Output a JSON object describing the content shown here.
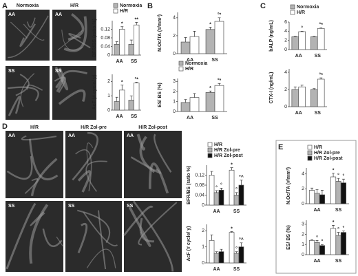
{
  "panel_labels": [
    "A",
    "B",
    "C",
    "D",
    "E"
  ],
  "micrographs": [
    {
      "columns": [
        "Normoxia",
        "H/R"
      ],
      "rows": [
        "AA",
        "SS"
      ]
    },
    {
      "columns": [
        "H/R",
        "H/R Zol-pre",
        "H/R Zol-post"
      ],
      "rows": [
        "AA",
        "SS"
      ]
    }
  ],
  "chart_data": [
    {
      "type": "bar",
      "ylabel": "BFR/BS (ratio %)",
      "categories": [
        "AA",
        "SS"
      ],
      "ylim": [
        0,
        0.16
      ],
      "yticks": [
        0,
        0.04,
        0.08,
        0.12
      ],
      "legend": "top",
      "series": [
        {
          "name": "Normoxia",
          "color": "#b3b3b3",
          "values": [
            0.05,
            0.05
          ],
          "errors": [
            0.012,
            0.02
          ]
        },
        {
          "name": "H/R",
          "color": "#ffffff",
          "values": [
            0.12,
            0.14
          ],
          "errors": [
            0.012,
            0.012
          ],
          "markers": [
            "*",
            "**"
          ]
        }
      ]
    },
    {
      "type": "bar",
      "ylabel": "AcF (# cycle/ y)",
      "categories": [
        "AA",
        "SS"
      ],
      "ylim": [
        0,
        2.5
      ],
      "yticks": [
        0,
        1,
        2
      ],
      "series": [
        {
          "name": "Normoxia",
          "color": "#b3b3b3",
          "values": [
            0.6,
            0.7
          ],
          "errors": [
            0.3,
            0.3
          ]
        },
        {
          "name": "H/R",
          "color": "#ffffff",
          "values": [
            1.4,
            1.9
          ],
          "errors": [
            0.35,
            0.05
          ],
          "markers": [
            "*",
            "°*"
          ]
        }
      ]
    },
    {
      "type": "bar",
      "ylabel": "N.Oc/TA (#/mm²)",
      "categories": [
        "AA",
        "SS"
      ],
      "ylim": [
        0,
        4.6
      ],
      "yticks": [
        0,
        2,
        4
      ],
      "series": [
        {
          "name": "Normoxia",
          "color": "#b3b3b3",
          "values": [
            1.3,
            2.7
          ],
          "errors": [
            0.5,
            0.25
          ],
          "markers": [
            null,
            "*"
          ]
        },
        {
          "name": "H/R",
          "color": "#ffffff",
          "values": [
            1.9,
            3.6
          ],
          "errors": [
            0.6,
            0.4
          ],
          "markers": [
            null,
            "°*"
          ]
        }
      ]
    },
    {
      "type": "bar",
      "ylabel": "ES/ BS (%)",
      "categories": [
        "AA",
        "SS"
      ],
      "ylim": [
        0,
        3.3
      ],
      "yticks": [
        0,
        1,
        2,
        3
      ],
      "legend": "top",
      "series": [
        {
          "name": "Normoxia",
          "color": "#b3b3b3",
          "values": [
            0.9,
            1.9
          ],
          "errors": [
            0.3,
            0.15
          ],
          "markers": [
            null,
            "*"
          ]
        },
        {
          "name": "H/R",
          "color": "#ffffff",
          "values": [
            1.4,
            2.6
          ],
          "errors": [
            0.4,
            0.2
          ],
          "markers": [
            null,
            "°*"
          ]
        }
      ]
    },
    {
      "type": "bar",
      "ylabel": "bALP (ng/mL)",
      "categories": [
        "AA",
        "SS"
      ],
      "ylim": [
        0,
        6
      ],
      "yticks": [
        0,
        2,
        4,
        6
      ],
      "legend": "top",
      "series": [
        {
          "name": "Normoxia",
          "color": "#b3b3b3",
          "values": [
            2.8,
            2.8
          ],
          "errors": [
            0.1,
            0.1
          ]
        },
        {
          "name": "H/R",
          "color": "#ffffff",
          "values": [
            3.9,
            4.6
          ],
          "errors": [
            0.1,
            0.15
          ],
          "markers": [
            "°",
            "°*"
          ]
        }
      ]
    },
    {
      "type": "bar",
      "ylabel": "CTX-I (ng/mL)",
      "categories": [
        "AA",
        "SS"
      ],
      "ylim": [
        0,
        4.4
      ],
      "yticks": [
        0,
        2,
        4
      ],
      "series": [
        {
          "name": "Normoxia",
          "color": "#b3b3b3",
          "values": [
            2.0,
            2.0
          ],
          "errors": [
            0.3,
            0.1
          ]
        },
        {
          "name": "H/R",
          "color": "#ffffff",
          "values": [
            2.3,
            3.2
          ],
          "errors": [
            0.2,
            0.15
          ],
          "markers": [
            null,
            "°*"
          ]
        }
      ]
    },
    {
      "type": "bar",
      "ylabel": "BFR/BS (ratio %)",
      "categories": [
        "AA",
        "SS"
      ],
      "ylim": [
        0,
        0.16
      ],
      "yticks": [
        0,
        0.04,
        0.08,
        0.12
      ],
      "legend": "top",
      "series": [
        {
          "name": "H/R",
          "color": "#ffffff",
          "values": [
            0.12,
            0.14
          ],
          "errors": [
            0.015,
            0.01
          ],
          "markers": [
            null,
            "*"
          ]
        },
        {
          "name": "H/R Zol-pre",
          "color": "#b3b3b3",
          "values": [
            0.05,
            0.04
          ],
          "errors": [
            0.008,
            0.01
          ],
          "markers": [
            "°",
            "°"
          ]
        },
        {
          "name": "H/R Zol-post",
          "color": "#111111",
          "values": [
            0.06,
            0.08
          ],
          "errors": [
            0.008,
            0.02
          ],
          "markers": [
            "°",
            "°^"
          ]
        }
      ]
    },
    {
      "type": "bar",
      "ylabel": "AcF (# cycle/ y)",
      "categories": [
        "AA",
        "SS"
      ],
      "ylim": [
        0,
        2.4
      ],
      "yticks": [
        0,
        1,
        2
      ],
      "series": [
        {
          "name": "H/R",
          "color": "#ffffff",
          "values": [
            1.4,
            1.9
          ],
          "errors": [
            0.35,
            0.05
          ],
          "markers": [
            null,
            "*"
          ]
        },
        {
          "name": "H/R Zol-pre",
          "color": "#b3b3b3",
          "values": [
            0.6,
            0.6
          ],
          "errors": [
            0.1,
            0.1
          ],
          "markers": [
            null,
            "°"
          ]
        },
        {
          "name": "H/R Zol-post",
          "color": "#111111",
          "values": [
            0.7,
            1.0
          ],
          "errors": [
            0.15,
            0.25
          ],
          "markers": [
            null,
            "°^"
          ]
        }
      ]
    },
    {
      "type": "bar",
      "ylabel": "N.Oc/TA (#/mm²)",
      "categories": [
        "AA",
        "SS"
      ],
      "ylim": [
        0,
        4.8
      ],
      "yticks": [
        0,
        2,
        4
      ],
      "legend": "top",
      "series": [
        {
          "name": "H/R",
          "color": "#ffffff",
          "values": [
            1.8,
            3.6
          ],
          "errors": [
            0.3,
            0.5
          ],
          "markers": [
            null,
            "*"
          ]
        },
        {
          "name": "H/R Zol-pre",
          "color": "#b3b3b3",
          "values": [
            1.4,
            3.0
          ],
          "errors": [
            0.5,
            0.4
          ],
          "markers": [
            null,
            "°"
          ]
        },
        {
          "name": "H/R Zol-post",
          "color": "#111111",
          "values": [
            1.2,
            2.8
          ],
          "errors": [
            0.6,
            0.5
          ],
          "markers": [
            null,
            "°"
          ]
        }
      ]
    },
    {
      "type": "bar",
      "ylabel": "ES/ BS (%)",
      "categories": [
        "AA",
        "SS"
      ],
      "ylim": [
        0,
        3.4
      ],
      "yticks": [
        0,
        1,
        2,
        3
      ],
      "series": [
        {
          "name": "H/R",
          "color": "#ffffff",
          "values": [
            1.4,
            2.6
          ],
          "errors": [
            0.1,
            0.3
          ],
          "markers": [
            null,
            "*"
          ]
        },
        {
          "name": "H/R Zol-pre",
          "color": "#b3b3b3",
          "values": [
            1.2,
            1.9
          ],
          "errors": [
            0.2,
            0.3
          ],
          "markers": [
            "°",
            "°"
          ]
        },
        {
          "name": "H/R Zol-post",
          "color": "#111111",
          "values": [
            0.9,
            2.2
          ],
          "errors": [
            0.1,
            0.15
          ],
          "markers": [
            "°",
            "°"
          ]
        }
      ]
    }
  ]
}
